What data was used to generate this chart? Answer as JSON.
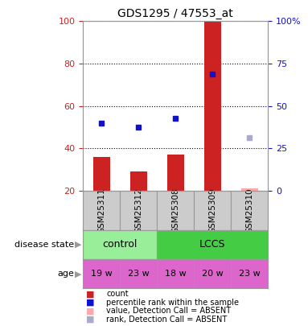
{
  "title": "GDS1295 / 47553_at",
  "samples": [
    "GSM25311",
    "GSM25312",
    "GSM25308",
    "GSM25309",
    "GSM25310"
  ],
  "bar_values": [
    36,
    29,
    37,
    100,
    null
  ],
  "bar_absent_values": [
    null,
    null,
    null,
    null,
    21
  ],
  "bar_color": "#cc2222",
  "bar_absent_color": "#ffaaaa",
  "dot_values": [
    52,
    50,
    54,
    75,
    null
  ],
  "dot_color": "#1111cc",
  "dot_absent_values": [
    null,
    null,
    null,
    null,
    45
  ],
  "dot_absent_color": "#aaaacc",
  "ylim_left": [
    20,
    100
  ],
  "yticks_left": [
    20,
    40,
    60,
    80,
    100
  ],
  "ytick_labels_right": [
    "0",
    "25",
    "50",
    "75",
    "100%"
  ],
  "disease_groups": [
    {
      "label": "control",
      "start": 0,
      "end": 1,
      "color": "#99ee99"
    },
    {
      "label": "LCCS",
      "start": 2,
      "end": 4,
      "color": "#44cc44"
    }
  ],
  "age": [
    "19 w",
    "23 w",
    "18 w",
    "20 w",
    "23 w"
  ],
  "age_color": "#dd66cc",
  "legend_items": [
    {
      "color": "#cc2222",
      "label": "count"
    },
    {
      "color": "#1111cc",
      "label": "percentile rank within the sample"
    },
    {
      "color": "#ffaaaa",
      "label": "value, Detection Call = ABSENT"
    },
    {
      "color": "#aaaacc",
      "label": "rank, Detection Call = ABSENT"
    }
  ],
  "sample_box_color": "#cccccc",
  "left_axis_color": "#cc2222",
  "right_axis_color": "#1111cc",
  "background_color": "#ffffff"
}
